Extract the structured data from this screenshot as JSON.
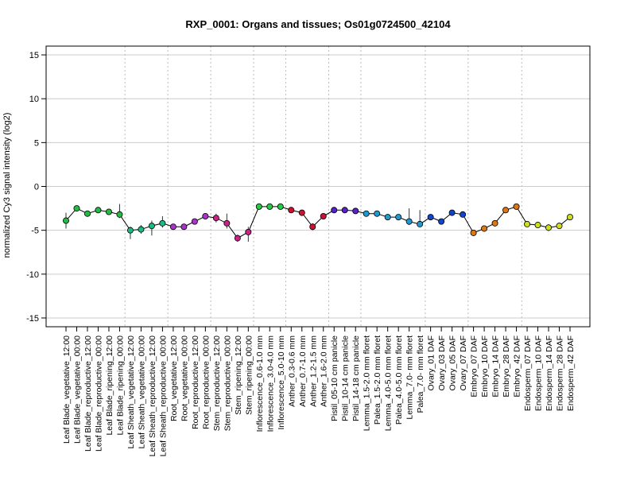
{
  "chart_data": {
    "type": "line",
    "title": "RXP_0001: Organs and tissues; Os01g0724500_42104",
    "ylabel": "normalized Cy3 signal intensity (log2)",
    "xlabel": "",
    "ylim": [
      -16,
      16
    ],
    "yticks": [
      -15,
      -10,
      -5,
      0,
      5,
      10,
      15
    ],
    "grid": true,
    "categories": [
      "Leaf Blade_vegetative_12:00",
      "Leaf Blade_vegetative_00:00",
      "Leaf Blade_reproductive_12:00",
      "Leaf Blade_reproductive_00:00",
      "Leaf Blade_ripening_12:00",
      "Leaf Blade_ripening_00:00",
      "Leaf Sheath_vegetative_12:00",
      "Leaf Sheath_vegetative_00:00",
      "Leaf Sheath_reproductive_12:00",
      "Leaf Sheath_reproductive_00:00",
      "Root_vegetative_12:00",
      "Root_vegetative_00:00",
      "Root_reproductive_12:00",
      "Root_reproductive_00:00",
      "Stem_reproductive_12:00",
      "Stem_reproductive_00:00",
      "Stem_ripening_12:00",
      "Stem_ripening_00:00",
      "Inflorescence_0.6-1.0 mm",
      "Inflorescence_3.0-4.0 mm",
      "Inflorescence_5.0-10 mm",
      "Anther_0.3-0.6 mm",
      "Anther_0.7-1.0 mm",
      "Anther_1.2-1.5 mm",
      "Anther_1.6-2.0 mm",
      "Pistil_05-10 cm panicle",
      "Pistil_10-14 cm panicle",
      "Pistil_14-18 cm panicle",
      "Lemma_1.5-2.0 mm floret",
      "Palea_1.5-2.0 mm floret",
      "Lemma_4.0-5.0 mm floret",
      "Palea_4.0-5.0 mm floret",
      "Lemma_7.0- mm floret",
      "Palea_7.0- mm floret",
      "Ovary_01 DAF",
      "Ovary_03 DAF",
      "Ovary_05 DAF",
      "Ovary_07 DAF",
      "Embryo_07 DAF",
      "Embryo_10 DAF",
      "Embryo_14 DAF",
      "Embryo_28 DAF",
      "Embryo_42 DAF",
      "Endosperm_07 DAF",
      "Endosperm_10 DAF",
      "Endosperm_14 DAF",
      "Endosperm_28 DAF",
      "Endosperm_42 DAF"
    ],
    "series": [
      {
        "values": [
          -3.9,
          -2.5,
          -3.1,
          -2.7,
          -2.9,
          -3.2,
          -5.0,
          -4.9,
          -4.5,
          -4.2,
          -4.6,
          -4.6,
          -4.0,
          -3.4,
          -3.6,
          -4.2,
          -5.9,
          -5.2,
          -2.3,
          -2.3,
          -2.3,
          -2.7,
          -3.0,
          -4.6,
          -3.4,
          -2.7,
          -2.7,
          -2.8,
          -3.1,
          -3.1,
          -3.5,
          -3.5,
          -4.0,
          -4.3,
          -3.5,
          -4.0,
          -3.0,
          -3.2,
          -5.3,
          -4.8,
          -4.2,
          -2.7,
          -2.3,
          -4.3,
          -4.4,
          -4.7,
          -4.5,
          -3.5
        ],
        "err_low": [
          -4.8,
          -2.8,
          -3.4,
          -3.0,
          -3.2,
          -3.6,
          -6.0,
          -5.4,
          -5.6,
          -4.7,
          -4.9,
          -4.8,
          -4.3,
          -3.7,
          -4.1,
          -4.8,
          -6.3,
          -6.3,
          -2.5,
          -2.5,
          -2.5,
          -2.9,
          -3.2,
          -5.0,
          -3.7,
          -2.9,
          -2.9,
          -3.0,
          -3.3,
          -3.3,
          -3.7,
          -3.7,
          -4.4,
          -4.6,
          -3.7,
          -4.2,
          -3.2,
          -3.4,
          -5.5,
          -5.0,
          -4.4,
          -2.9,
          -2.5,
          -4.5,
          -4.6,
          -5.1,
          -4.7,
          -3.7
        ],
        "err_high": [
          -3.0,
          -2.2,
          -2.8,
          -2.4,
          -2.6,
          -2.0,
          -4.6,
          -4.4,
          -3.9,
          -3.4,
          -4.3,
          -4.4,
          -3.7,
          -3.1,
          -3.1,
          -3.1,
          -5.5,
          -4.6,
          -2.1,
          -2.1,
          -2.1,
          -2.5,
          -2.8,
          -4.2,
          -3.1,
          -2.5,
          -2.5,
          -2.6,
          -2.9,
          -2.9,
          -3.3,
          -3.3,
          -2.5,
          -2.7,
          -3.3,
          -3.8,
          -2.8,
          -3.0,
          -5.1,
          -4.6,
          -4.0,
          -2.5,
          -2.1,
          -4.1,
          -4.2,
          -4.3,
          -4.3,
          -3.3
        ],
        "colors": [
          "#22bb44",
          "#22bb44",
          "#22bb44",
          "#22bb44",
          "#22bb44",
          "#22bb44",
          "#18bb88",
          "#18bb88",
          "#18bb88",
          "#18bb88",
          "#aa33cc",
          "#aa33cc",
          "#aa33cc",
          "#aa33cc",
          "#cc2288",
          "#cc2288",
          "#cc2288",
          "#cc2288",
          "#22cc44",
          "#22cc44",
          "#22cc44",
          "#cc1133",
          "#cc1133",
          "#cc1133",
          "#cc1133",
          "#5522cc",
          "#5522cc",
          "#5522cc",
          "#2299cc",
          "#2299cc",
          "#2299cc",
          "#2299cc",
          "#2299cc",
          "#2299cc",
          "#1144cc",
          "#1144cc",
          "#1144cc",
          "#1144cc",
          "#dd7711",
          "#dd7711",
          "#dd7711",
          "#dd7711",
          "#dd7711",
          "#ccdd22",
          "#ccdd22",
          "#ccdd22",
          "#ccdd22",
          "#ccdd22"
        ]
      }
    ]
  }
}
